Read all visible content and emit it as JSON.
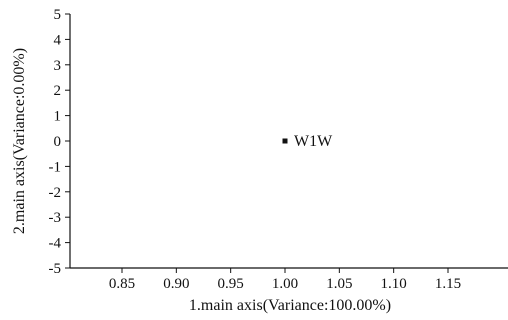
{
  "chart_data": {
    "type": "scatter",
    "title": "",
    "xlabel": "1.main axis(Variance:100.00%)",
    "ylabel": "2.main axis(Variance:0.00%)",
    "xlim": [
      0.8,
      1.2
    ],
    "ylim": [
      -5,
      5
    ],
    "x_ticks": [
      0.85,
      0.9,
      0.95,
      1.0,
      1.05,
      1.1,
      1.15
    ],
    "x_tick_labels": [
      "0.85",
      "0.90",
      "0.95",
      "1.00",
      "1.05",
      "1.10",
      "1.15"
    ],
    "y_ticks": [
      5,
      4,
      3,
      2,
      1,
      0,
      -1,
      -2,
      -3,
      -4,
      -5
    ],
    "y_tick_labels": [
      "5",
      "4",
      "3",
      "2",
      "1",
      "0",
      "-1",
      "-2",
      "-3",
      "-4",
      "-5"
    ],
    "grid": false,
    "points": [
      {
        "x": 1.0,
        "y": 0,
        "label": "W1W"
      }
    ]
  }
}
